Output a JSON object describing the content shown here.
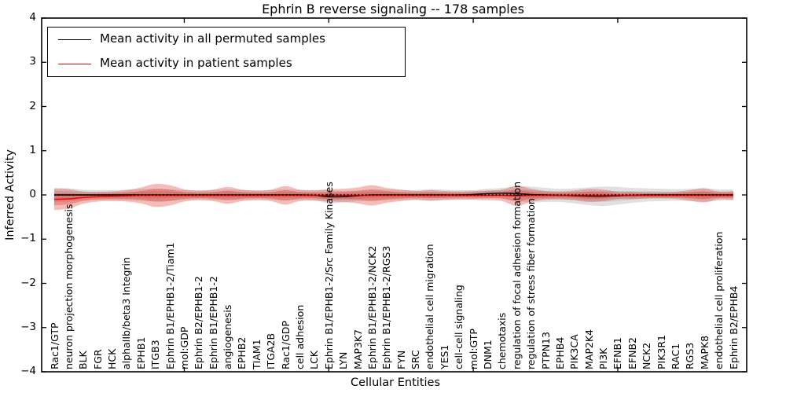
{
  "chart_data": {
    "type": "area",
    "title": "Ephrin B reverse signaling -- 178 samples",
    "xlabel": "Cellular Entities",
    "ylabel": "Inferred Activity",
    "ylim": [
      -4,
      4
    ],
    "yticks": [
      4,
      3,
      2,
      1,
      0,
      -1,
      -2,
      -3,
      -4
    ],
    "xtick_category_indexes": [
      9,
      19,
      29,
      39
    ],
    "grid": false,
    "legend": {
      "position": "upper-left",
      "items": [
        {
          "label": "Mean activity in all permuted samples",
          "color": "#000000",
          "line_style": "solid"
        },
        {
          "label": "Mean activity in patient samples",
          "color": "#ff0000",
          "line_style": "solid"
        }
      ]
    },
    "categories": [
      "Rac1/GTP",
      "neuron projection morphogenesis",
      "BLK",
      "FGR",
      "HCK",
      "alphaIIb/beta3 Integrin",
      "EPHB1",
      "ITGB3",
      "Ephrin B1/EPHB1-2/Tiam1",
      "mol:GDP",
      "Ephrin B2/EPHB1-2",
      "Ephrin B1/EPHB1-2",
      "angiogenesis",
      "EPHB2",
      "TIAM1",
      "ITGA2B",
      "Rac1/GDP",
      "cell adhesion",
      "LCK",
      "Ephrin B1/EPHB1-2/Src Family Kinases",
      "LYN",
      "MAP3K7",
      "Ephrin B1/EPHB1-2/NCK2",
      "Ephrin B1/EPHB1-2/RGS3",
      "FYN",
      "SRC",
      "endothelial cell migration",
      "YES1",
      "cell-cell signaling",
      "mol:GTP",
      "DNM1",
      "chemotaxis",
      "regulation of focal adhesion formation",
      "regulation of stress fiber formation",
      "PTPN13",
      "EPHB4",
      "PIK3CA",
      "MAP2K4",
      "PI3K",
      "EFNB1",
      "EFNB2",
      "NCK2",
      "PIK3R1",
      "RAC1",
      "RGS3",
      "MAPK8",
      "endothelial cell proliferation",
      "Ephrin B2/EPHB4"
    ],
    "series": [
      {
        "name": "Mean activity in all permuted samples",
        "color": "#000000",
        "line_style": "solid",
        "values": [
          0,
          0,
          0,
          0,
          0,
          0,
          0,
          0,
          0,
          0,
          0,
          0,
          0,
          0,
          0,
          0,
          0,
          0,
          -0.01,
          -0.04,
          -0.04,
          -0.02,
          0,
          0,
          0,
          0,
          0,
          0,
          0,
          0.01,
          0.03,
          0.04,
          0.03,
          0.01,
          0,
          -0.01,
          -0.02,
          -0.03,
          -0.03,
          -0.02,
          -0.01,
          0,
          0,
          0,
          0,
          0,
          0,
          0
        ]
      },
      {
        "name": "Mean activity in patient samples",
        "color": "#ff0000",
        "line_style": "solid",
        "values": [
          -0.1,
          -0.09,
          -0.06,
          -0.04,
          -0.03,
          -0.02,
          -0.01,
          -0.01,
          -0.01,
          -0.01,
          -0.01,
          -0.01,
          -0.01,
          -0.01,
          -0.01,
          -0.01,
          -0.01,
          -0.01,
          -0.01,
          -0.01,
          -0.01,
          -0.01,
          -0.01,
          -0.01,
          -0.01,
          -0.01,
          -0.01,
          -0.01,
          -0.01,
          -0.01,
          -0.01,
          -0.01,
          -0.02,
          -0.01,
          -0.01,
          -0.01,
          -0.01,
          -0.01,
          -0.01,
          -0.01,
          -0.01,
          -0.01,
          -0.01,
          -0.01,
          -0.01,
          -0.01,
          -0.01,
          -0.01
        ]
      }
    ],
    "bands": [
      {
        "name": "permuted samples activity range",
        "color": "#828282",
        "opacity": 0.25,
        "center_series": 0,
        "half_widths": [
          0.16,
          0.15,
          0.12,
          0.11,
          0.11,
          0.12,
          0.13,
          0.14,
          0.13,
          0.11,
          0.1,
          0.11,
          0.12,
          0.11,
          0.1,
          0.11,
          0.12,
          0.11,
          0.11,
          0.15,
          0.13,
          0.12,
          0.13,
          0.12,
          0.11,
          0.11,
          0.13,
          0.12,
          0.11,
          0.1,
          0.11,
          0.12,
          0.16,
          0.18,
          0.16,
          0.15,
          0.17,
          0.2,
          0.22,
          0.2,
          0.17,
          0.15,
          0.14,
          0.13,
          0.14,
          0.15,
          0.13,
          0.12
        ]
      },
      {
        "name": "patient samples activity range",
        "color": "#dc3228",
        "opacity": 0.32,
        "center_series": 1,
        "half_widths": [
          0.24,
          0.22,
          0.14,
          0.11,
          0.11,
          0.13,
          0.18,
          0.26,
          0.23,
          0.14,
          0.11,
          0.13,
          0.19,
          0.13,
          0.11,
          0.13,
          0.21,
          0.13,
          0.12,
          0.14,
          0.15,
          0.18,
          0.23,
          0.17,
          0.13,
          0.1,
          0.12,
          0.1,
          0.09,
          0.1,
          0.11,
          0.13,
          0.23,
          0.15,
          0.1,
          0.09,
          0.11,
          0.15,
          0.13,
          0.08,
          0.08,
          0.07,
          0.07,
          0.08,
          0.12,
          0.16,
          0.09,
          0.1
        ]
      }
    ],
    "inner_band_ratio": 0.55,
    "zero_line": {
      "y": 0,
      "style": "dotted",
      "color": "#000000"
    }
  }
}
